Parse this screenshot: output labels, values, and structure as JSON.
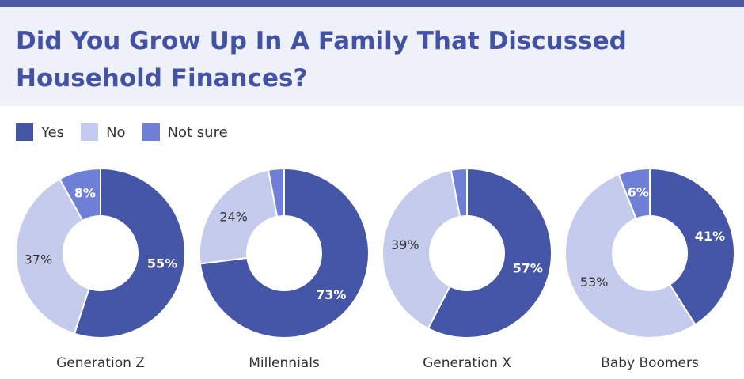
{
  "title": "Did You Grow Up In A Family That Discussed Household Finances?",
  "colors": {
    "yes": "#4556a6",
    "no": "#c5cbec",
    "not_sure": "#6f7fd6",
    "header_bg": "#eef1f8",
    "title": "#4452a3"
  },
  "legend": [
    {
      "label": "Yes",
      "color": "#4556a6"
    },
    {
      "label": "No",
      "color": "#c5cbec"
    },
    {
      "label": "Not sure",
      "color": "#6f7fd6"
    }
  ],
  "chart_data": {
    "type": "pie",
    "title": "Did You Grow Up In A Family That Discussed Household Finances?",
    "series_names": [
      "Yes",
      "No",
      "Not sure"
    ],
    "charts": [
      {
        "group": "Generation Z",
        "values": [
          55,
          37,
          8
        ],
        "labels": [
          "55%",
          "37%",
          "8%"
        ]
      },
      {
        "group": "Millennials",
        "values": [
          73,
          24,
          3
        ],
        "labels": [
          "73%",
          "24%",
          ""
        ]
      },
      {
        "group": "Generation X",
        "values": [
          57,
          39,
          3
        ],
        "labels": [
          "57%",
          "39%",
          ""
        ]
      },
      {
        "group": "Baby Boomers",
        "values": [
          41,
          53,
          6
        ],
        "labels": [
          "41%",
          "53%",
          "6%"
        ]
      }
    ]
  }
}
